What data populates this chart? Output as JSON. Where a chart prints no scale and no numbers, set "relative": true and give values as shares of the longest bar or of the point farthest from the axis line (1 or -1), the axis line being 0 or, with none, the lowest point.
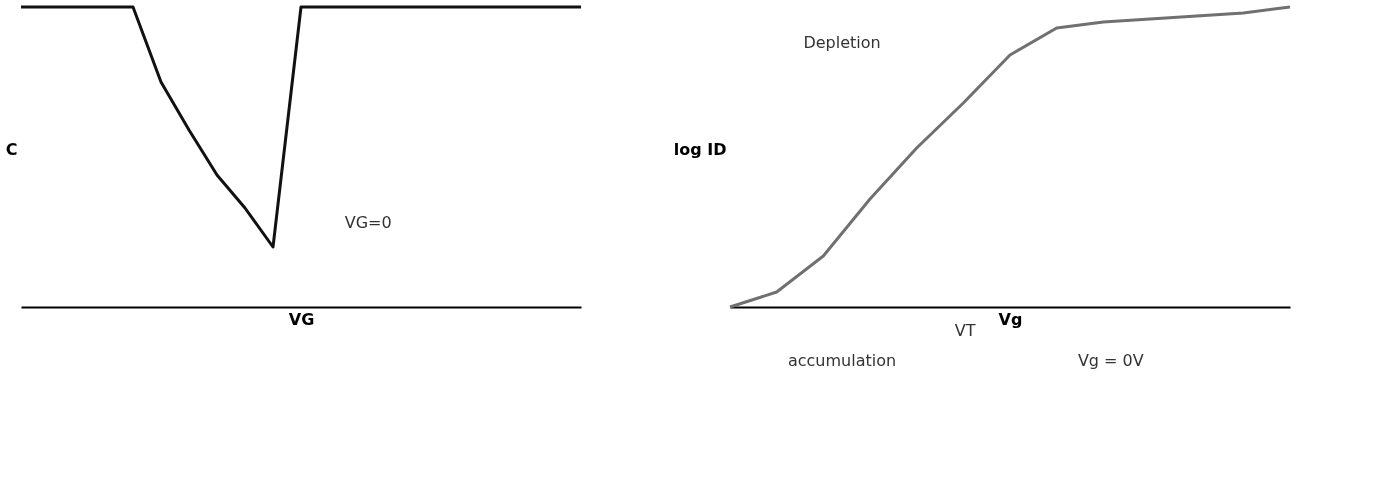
{
  "chart_data": [
    {
      "type": "line",
      "relative": true,
      "ylabel": "C",
      "xlabel": "VG",
      "annotations": [
        "VG=0"
      ],
      "color": "#111111",
      "categories": [
        null,
        null,
        null,
        null,
        null,
        null,
        null,
        null,
        null,
        null,
        null,
        null,
        null,
        null,
        null,
        null,
        null,
        null,
        null,
        null,
        null
      ],
      "values": [
        1,
        1,
        1,
        1,
        1,
        0.75,
        0.59,
        0.44,
        0.33,
        0.2,
        1,
        1,
        1,
        1,
        1,
        1,
        1,
        1,
        1,
        1,
        1
      ]
    },
    {
      "type": "line",
      "relative": true,
      "ylabel": "log ID",
      "xlabel": "Vg",
      "annotations": [
        "Depletion",
        "accumulation",
        "VT",
        "Vg = 0V"
      ],
      "color": "#707070",
      "categories": [
        null,
        null,
        null,
        null,
        null,
        null,
        null,
        null,
        null,
        null,
        null,
        null,
        null
      ],
      "values": [
        0,
        0.05,
        0.17,
        0.36,
        0.53,
        0.68,
        0.84,
        0.93,
        0.95,
        0.96,
        0.97,
        0.98,
        1
      ]
    }
  ]
}
